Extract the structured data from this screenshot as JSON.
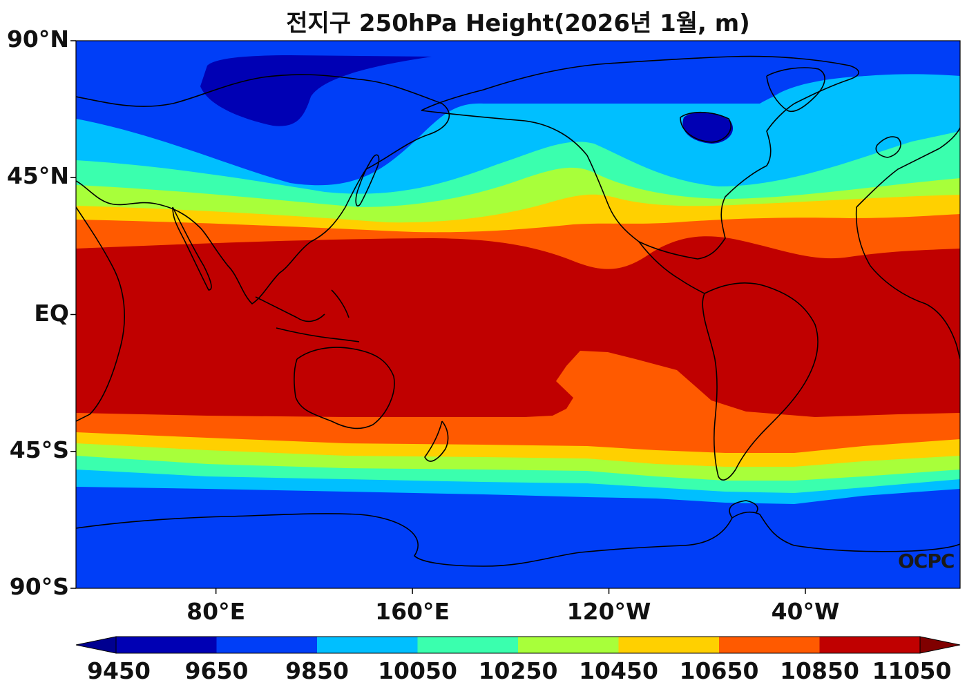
{
  "title": "전지구 250hPa Height(2026년 1월, m)",
  "watermark": "OCPC",
  "lat_ticks": [
    "90°N",
    "45°N",
    "EQ",
    "45°S",
    "90°S"
  ],
  "lon_ticks": [
    "80°E",
    "160°E",
    "120°W",
    "40°W"
  ],
  "colorbar": {
    "labels": [
      "9450",
      "9650",
      "9850",
      "10050",
      "10250",
      "10450",
      "10650",
      "10850",
      "11050"
    ],
    "colors": [
      "#0000b4",
      "#003ef7",
      "#00bfff",
      "#3affae",
      "#a8ff3a",
      "#ffd000",
      "#ff5a00",
      "#c00000"
    ],
    "under_color": "#000090",
    "over_color": "#800000"
  },
  "chart_data": {
    "type": "heatmap",
    "title": "전지구 250hPa Height(2026년 1월, m)",
    "variable": "250hPa geopotential height",
    "units": "m",
    "projection": "equirectangular",
    "xlim": [
      23,
      383
    ],
    "ylim": [
      -90,
      90
    ],
    "levels": [
      9450,
      9650,
      9850,
      10050,
      10250,
      10450,
      10650,
      10850,
      11050
    ],
    "zonal_bands_approx": [
      {
        "range": "10850-11050",
        "lat_from": -33,
        "lat_to": 21
      },
      {
        "range": "10650-10850",
        "lat_from": -39,
        "lat_to": 28
      },
      {
        "range": "10450-10650",
        "lat_from": -44,
        "lat_to": 33
      },
      {
        "range": "10250-10450",
        "lat_from": -50,
        "lat_to": 38
      },
      {
        "range": "10050-10250",
        "lat_from": -57,
        "lat_to": 45
      },
      {
        "range": "9850-10050",
        "lat_from": -63,
        "lat_to": 55
      },
      {
        "range": "9650-9850",
        "lat_from": -90,
        "lat_to": 90
      },
      {
        "range": "9450-9650",
        "region": "northern Eurasia / Arctic near 80°N and eastern Canada near 60°N"
      }
    ]
  }
}
